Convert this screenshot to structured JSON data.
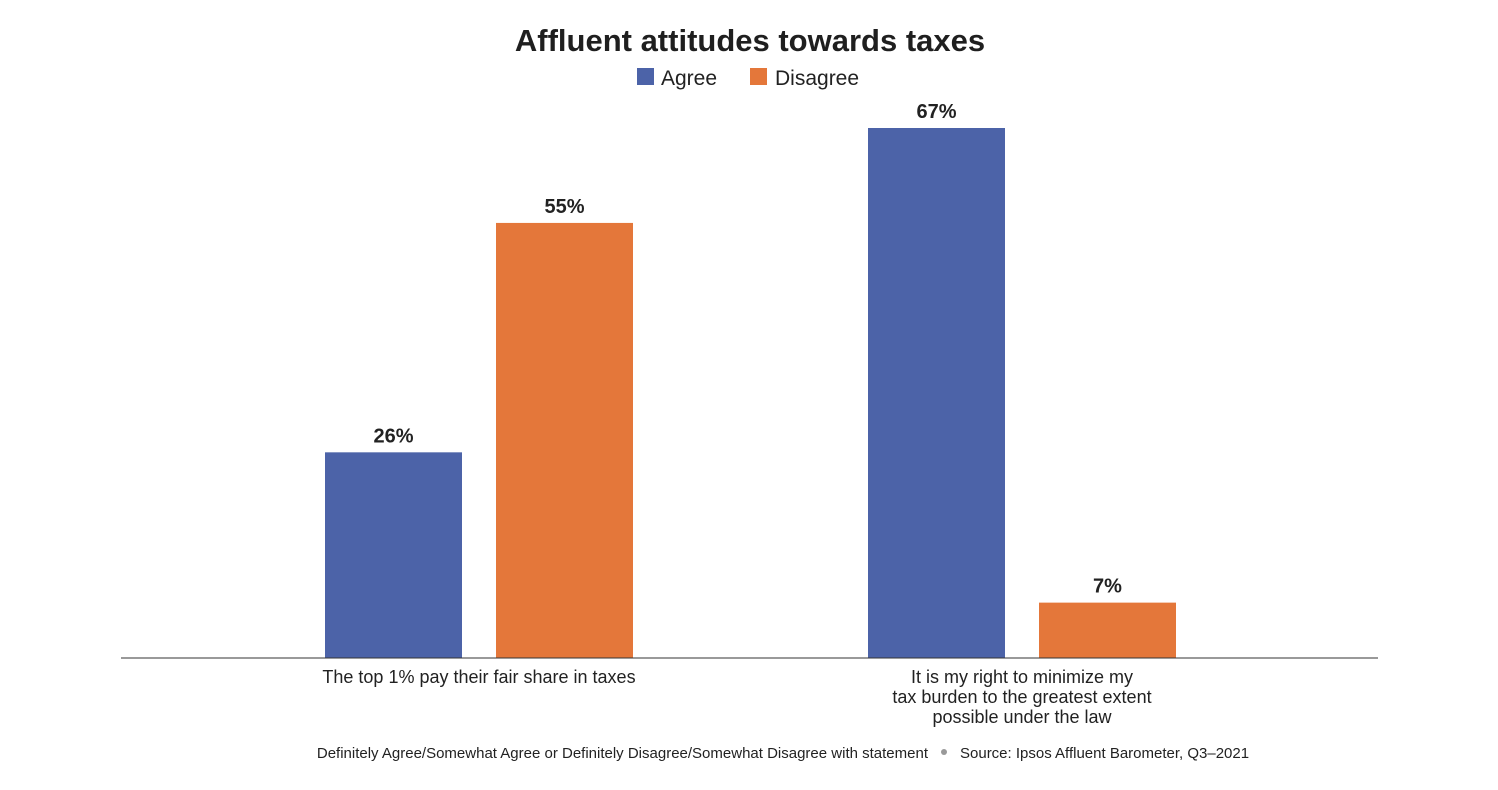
{
  "chart_data": {
    "type": "bar",
    "title": "Affluent attitudes towards taxes",
    "categories": [
      [
        "The top 1% pay their fair share in taxes"
      ],
      [
        "It is my right to minimize my",
        "tax burden to the greatest extent",
        "possible under the law"
      ]
    ],
    "series": [
      {
        "name": "Agree",
        "color": "#4c63a8",
        "values": [
          26,
          67
        ],
        "labels": [
          "26%",
          "67%"
        ]
      },
      {
        "name": "Disagree",
        "color": "#e4773a",
        "values": [
          55,
          7
        ],
        "labels": [
          "55%",
          "7%"
        ]
      }
    ],
    "ylim": [
      0,
      70
    ],
    "grid": false,
    "legend_position": "top-center",
    "footnote": "Definitely Agree/Somewhat Agree or Definitely Disagree/Somewhat Disagree with statement",
    "source": "Source: Ipsos Affluent Barometer, Q3–2021"
  }
}
